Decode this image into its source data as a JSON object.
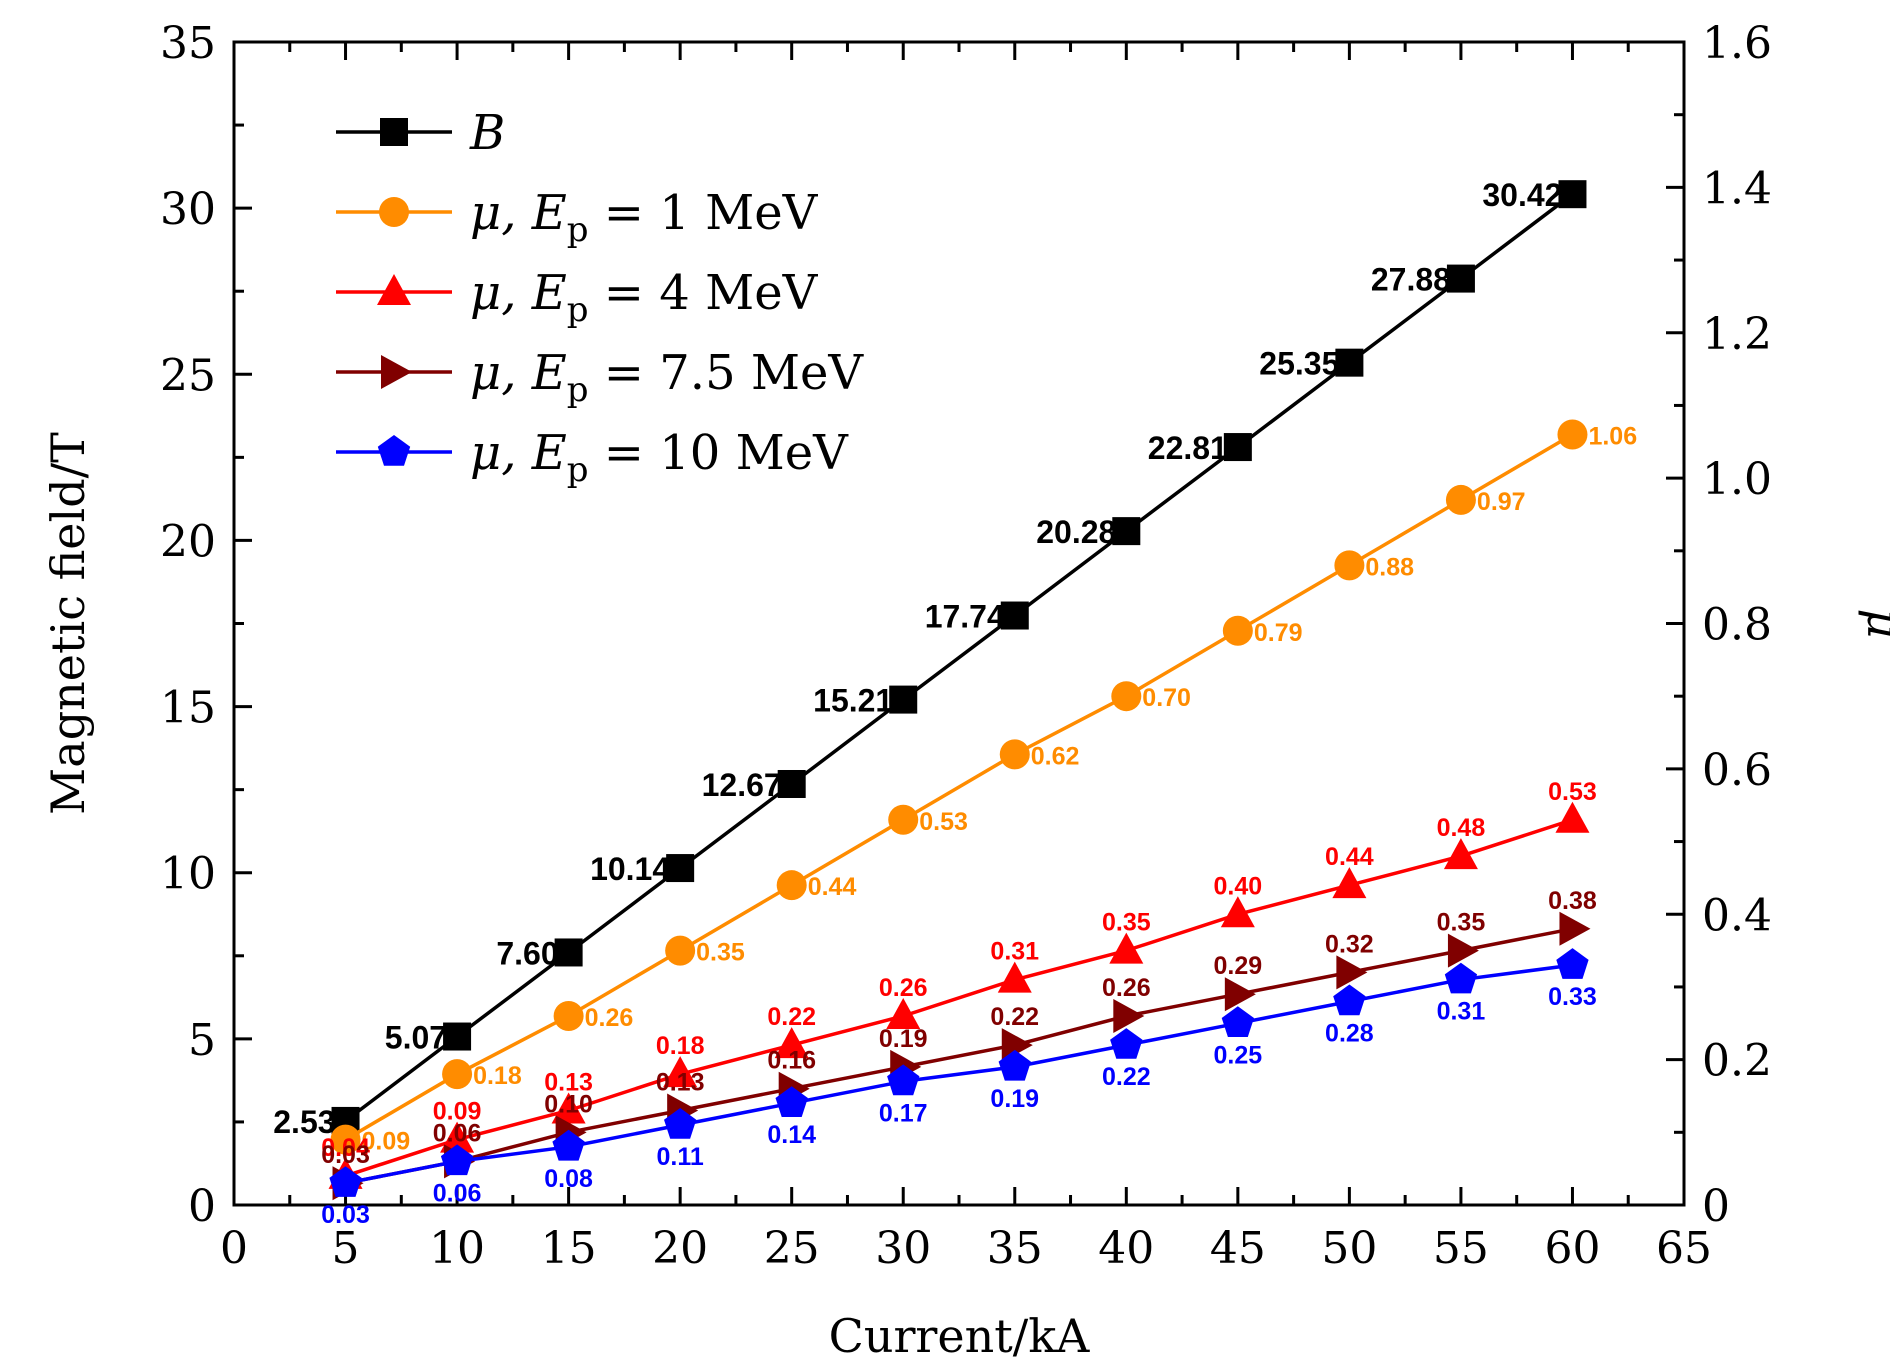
{
  "chart_data": {
    "type": "line",
    "x": [
      5,
      10,
      15,
      20,
      25,
      30,
      35,
      40,
      45,
      50,
      55,
      60
    ],
    "xlabel": "Current/kA",
    "ylabel": "Magnetic field/T",
    "y2label": "μ",
    "xlim": [
      0,
      65
    ],
    "ylim": [
      0,
      35
    ],
    "y2lim": [
      0,
      1.6
    ],
    "x_ticks": [
      "0",
      "5",
      "10",
      "15",
      "20",
      "25",
      "30",
      "35",
      "40",
      "45",
      "50",
      "55",
      "60",
      "65"
    ],
    "y_ticks": [
      "0",
      "5",
      "10",
      "15",
      "20",
      "25",
      "30",
      "35"
    ],
    "y2_ticks": [
      "0",
      "0.2",
      "0.4",
      "0.6",
      "0.8",
      "1.0",
      "1.2",
      "1.4",
      "1.6"
    ],
    "grid": false,
    "legend_position": "top-left",
    "series": [
      {
        "key": "B",
        "legend": "B",
        "axis": "left",
        "color": "#000000",
        "marker": "square",
        "values": [
          2.53,
          5.07,
          7.6,
          10.14,
          12.67,
          15.21,
          17.74,
          20.28,
          22.81,
          25.35,
          27.88,
          30.42
        ],
        "labels": [
          "2.53",
          "5.07",
          "7.60",
          "10.14",
          "12.67",
          "15.21",
          "17.74",
          "20.28",
          "22.81",
          "25.35",
          "27.88",
          "30.42"
        ]
      },
      {
        "key": "mu-1",
        "legend": "μ, E_p = 1 MeV",
        "legend_parts": [
          "μ, ",
          "E",
          "p",
          " = 1 MeV"
        ],
        "axis": "right",
        "color": "#ff8c00",
        "marker": "circle",
        "values": [
          0.09,
          0.18,
          0.26,
          0.35,
          0.44,
          0.53,
          0.62,
          0.7,
          0.79,
          0.88,
          0.97,
          1.06
        ],
        "labels": [
          "0.09",
          "0.18",
          "0.26",
          "0.35",
          "0.44",
          "0.53",
          "0.62",
          "0.70",
          "0.79",
          "0.88",
          "0.97",
          "1.06"
        ]
      },
      {
        "key": "mu-4",
        "legend": "μ, E_p = 4 MeV",
        "legend_parts": [
          "μ, ",
          "E",
          "p",
          " = 4 MeV"
        ],
        "axis": "right",
        "color": "#ff0000",
        "marker": "triangle-up",
        "values": [
          0.04,
          0.09,
          0.13,
          0.18,
          0.22,
          0.26,
          0.31,
          0.35,
          0.4,
          0.44,
          0.48,
          0.53
        ],
        "labels": [
          "0.04",
          "0.09",
          "0.13",
          "0.18",
          "0.22",
          "0.26",
          "0.31",
          "0.35",
          "0.40",
          "0.44",
          "0.48",
          "0.53"
        ]
      },
      {
        "key": "mu-7-5",
        "legend": "μ, E_p = 7.5 MeV",
        "legend_parts": [
          "μ, ",
          "E",
          "p",
          " = 7.5 MeV"
        ],
        "axis": "right",
        "color": "#800000",
        "marker": "triangle-right",
        "values": [
          0.03,
          0.06,
          0.1,
          0.13,
          0.16,
          0.19,
          0.22,
          0.26,
          0.29,
          0.32,
          0.35,
          0.38
        ],
        "labels": [
          "0.03",
          "0.06",
          "0.10",
          "0.13",
          "0.16",
          "0.19",
          "0.22",
          "0.26",
          "0.29",
          "0.32",
          "0.35",
          "0.38"
        ]
      },
      {
        "key": "mu-10",
        "legend": "μ, E_p = 10 MeV",
        "legend_parts": [
          "μ, ",
          "E",
          "p",
          " = 10 MeV"
        ],
        "axis": "right",
        "color": "#0000ff",
        "marker": "pentagon",
        "values": [
          0.03,
          0.06,
          0.08,
          0.11,
          0.14,
          0.17,
          0.19,
          0.22,
          0.25,
          0.28,
          0.31,
          0.33
        ],
        "labels": [
          "0.03",
          "0.06",
          "0.08",
          "0.11",
          "0.14",
          "0.17",
          "0.19",
          "0.22",
          "0.25",
          "0.28",
          "0.31",
          "0.33"
        ]
      }
    ]
  }
}
